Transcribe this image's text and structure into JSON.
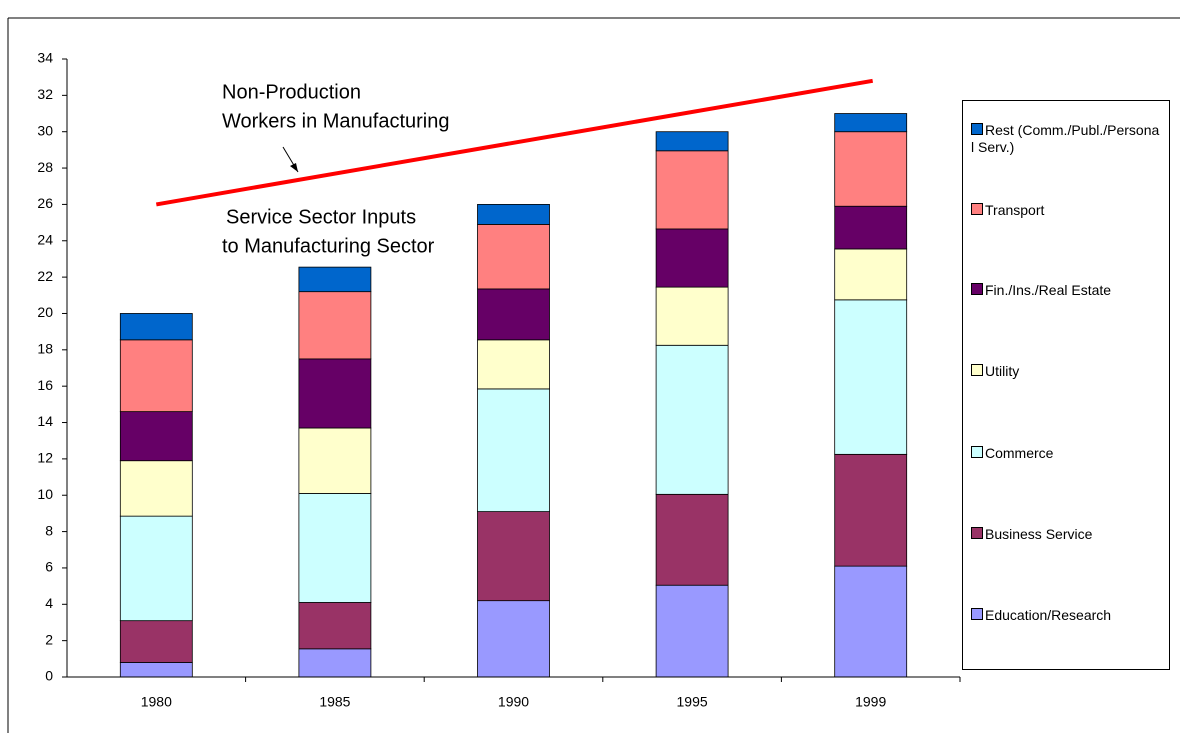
{
  "chart_data": {
    "type": "stacked_bar",
    "categories": [
      "1980",
      "1985",
      "1990",
      "1995",
      "1999"
    ],
    "series": [
      {
        "name": "Education/Research",
        "color": "#9999ff",
        "values": [
          0.8,
          1.55,
          4.2,
          5.05,
          6.1
        ]
      },
      {
        "name": "Business Service",
        "color": "#993366",
        "values": [
          2.3,
          2.55,
          4.9,
          5.0,
          6.15
        ]
      },
      {
        "name": "Commerce",
        "color": "#ccffff",
        "values": [
          5.75,
          6.0,
          6.75,
          8.2,
          8.5
        ]
      },
      {
        "name": "Utility",
        "color": "#ffffcc",
        "values": [
          3.05,
          3.6,
          2.7,
          3.2,
          2.8
        ]
      },
      {
        "name": "Fin./Ins./Real Estate",
        "color": "#660066",
        "values": [
          2.7,
          3.8,
          2.8,
          3.2,
          2.35
        ]
      },
      {
        "name": "Transport",
        "color": "#ff8080",
        "values": [
          3.95,
          3.7,
          3.55,
          4.3,
          4.1
        ]
      },
      {
        "name": "Rest (Comm./Publ./Personal Serv.)",
        "color": "#0066cc",
        "values": [
          1.45,
          1.35,
          1.1,
          1.05,
          1.0
        ]
      }
    ],
    "trend_line": {
      "color": "#ff0000",
      "values": [
        26,
        32.8
      ]
    },
    "annotations": [
      {
        "lines": [
          "Non-Production",
          "Workers in Manufacturing"
        ]
      },
      {
        "lines": [
          "Service Sector Inputs",
          "to Manufacturing Sector"
        ]
      }
    ],
    "ylim": [
      0,
      34
    ],
    "yticks": [
      0,
      2,
      4,
      6,
      8,
      10,
      12,
      14,
      16,
      18,
      20,
      22,
      24,
      26,
      28,
      30,
      32,
      34
    ],
    "legend": "right"
  }
}
